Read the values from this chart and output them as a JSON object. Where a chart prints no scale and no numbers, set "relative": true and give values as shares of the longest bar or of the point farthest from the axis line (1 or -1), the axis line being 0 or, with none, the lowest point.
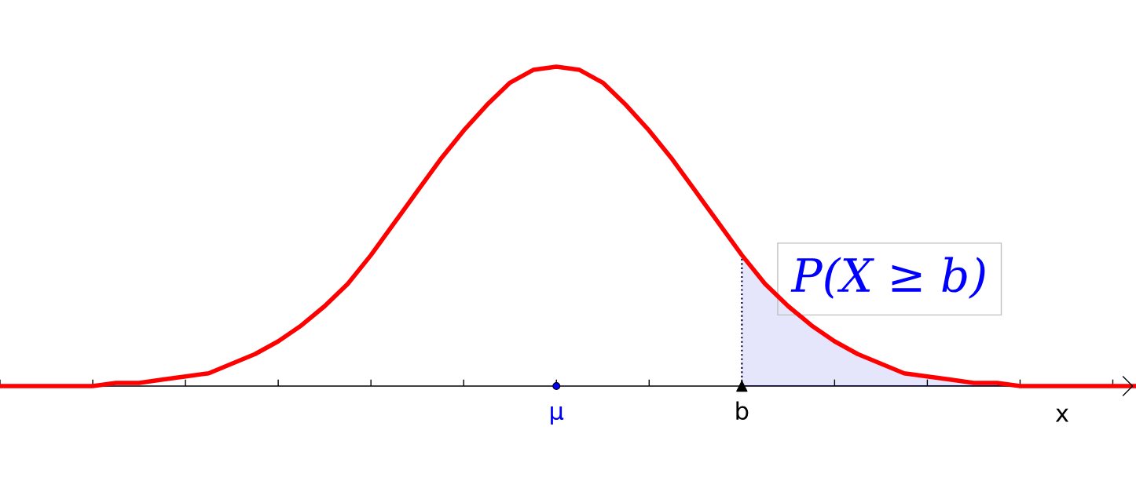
{
  "chart_data": {
    "type": "line",
    "relative": true,
    "xlabel": "x",
    "categories": [
      null,
      null,
      null,
      null,
      null,
      null,
      null,
      null,
      null,
      null,
      null,
      null,
      null,
      null,
      null,
      null,
      null,
      null,
      null,
      null,
      null,
      null,
      null,
      null,
      "μ",
      null,
      null,
      null,
      null,
      null,
      null,
      null,
      "b",
      null,
      null,
      null,
      null,
      null,
      null,
      null,
      null,
      null,
      null,
      null,
      null,
      null,
      null,
      null,
      null,
      null
    ],
    "annotations": [
      "P(X ≥ b)"
    ],
    "series": [
      {
        "type": "area",
        "color": "#e5e5fb",
        "values": [
          null,
          null,
          null,
          null,
          null,
          null,
          null,
          null,
          null,
          null,
          null,
          null,
          null,
          null,
          null,
          null,
          null,
          null,
          null,
          null,
          null,
          null,
          null,
          null,
          null,
          null,
          null,
          null,
          null,
          null,
          null,
          null,
          0.41,
          0.32,
          0.25,
          0.19,
          0.14,
          0.1,
          0.07,
          0.04,
          0.03,
          0.02,
          0.01,
          0.01,
          0,
          0,
          0,
          0,
          0,
          0
        ]
      },
      {
        "color": "#ff0000",
        "values": [
          0,
          0,
          0,
          0,
          0,
          0.01,
          0.01,
          0.02,
          0.03,
          0.04,
          0.07,
          0.1,
          0.14,
          0.19,
          0.25,
          0.32,
          0.41,
          0.51,
          0.61,
          0.71,
          0.8,
          0.88,
          0.95,
          0.99,
          1,
          0.99,
          0.95,
          0.88,
          0.8,
          0.71,
          0.61,
          0.51,
          0.41,
          0.32,
          0.25,
          0.19,
          0.14,
          0.1,
          0.07,
          0.04,
          0.03,
          0.02,
          0.01,
          0.01,
          0,
          0,
          0,
          0,
          0,
          0
        ]
      },
      {
        "type": "scatter",
        "color": "#0000ff",
        "marker": "circle",
        "values": [
          null,
          null,
          null,
          null,
          null,
          null,
          null,
          null,
          null,
          null,
          null,
          null,
          null,
          null,
          null,
          null,
          null,
          null,
          null,
          null,
          null,
          null,
          null,
          null,
          0,
          null,
          null,
          null,
          null,
          null,
          null,
          null,
          null,
          null,
          null,
          null,
          null,
          null,
          null,
          null,
          null,
          null,
          null,
          null,
          null,
          null,
          null,
          null,
          null,
          null
        ]
      },
      {
        "type": "scatter",
        "color": "#000000",
        "marker": "triangle",
        "values": [
          null,
          null,
          null,
          null,
          null,
          null,
          null,
          null,
          null,
          null,
          null,
          null,
          null,
          null,
          null,
          null,
          null,
          null,
          null,
          null,
          null,
          null,
          null,
          null,
          null,
          null,
          null,
          null,
          null,
          null,
          null,
          null,
          0,
          null,
          null,
          null,
          null,
          null,
          null,
          null,
          null,
          null,
          null,
          null,
          null,
          null,
          null,
          null,
          null,
          null
        ]
      }
    ]
  }
}
